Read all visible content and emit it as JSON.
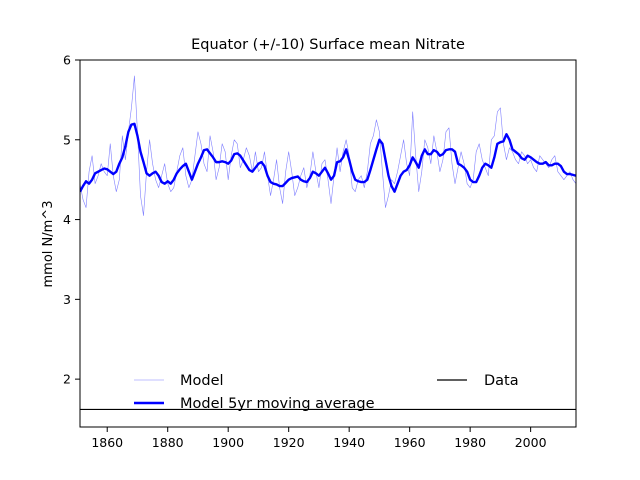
{
  "chart_data": {
    "type": "line",
    "title": "Equator (+/-10) Surface mean Nitrate",
    "xlabel": "",
    "ylabel": "mmol N/m^3",
    "xlim": [
      1851,
      2015
    ],
    "ylim": [
      1.4,
      6.0
    ],
    "xticks": [
      1860,
      1880,
      1900,
      1920,
      1940,
      1960,
      1980,
      2000
    ],
    "yticks": [
      2,
      3,
      4,
      5,
      6
    ],
    "grid": false,
    "legend": {
      "placement": "bottom",
      "columns": 2
    },
    "series": [
      {
        "name": "Model",
        "color": "#0000ff",
        "style": "thin",
        "x": [
          1851,
          1852,
          1853,
          1854,
          1855,
          1856,
          1857,
          1858,
          1859,
          1860,
          1861,
          1862,
          1863,
          1864,
          1865,
          1866,
          1867,
          1868,
          1869,
          1870,
          1871,
          1872,
          1873,
          1874,
          1875,
          1876,
          1877,
          1878,
          1879,
          1880,
          1881,
          1882,
          1883,
          1884,
          1885,
          1886,
          1887,
          1888,
          1889,
          1890,
          1891,
          1892,
          1893,
          1894,
          1895,
          1896,
          1897,
          1898,
          1899,
          1900,
          1901,
          1902,
          1903,
          1904,
          1905,
          1906,
          1907,
          1908,
          1909,
          1910,
          1911,
          1912,
          1913,
          1914,
          1915,
          1916,
          1917,
          1918,
          1919,
          1920,
          1921,
          1922,
          1923,
          1924,
          1925,
          1926,
          1927,
          1928,
          1929,
          1930,
          1931,
          1932,
          1933,
          1934,
          1935,
          1936,
          1937,
          1938,
          1939,
          1940,
          1941,
          1942,
          1943,
          1944,
          1945,
          1946,
          1947,
          1948,
          1949,
          1950,
          1951,
          1952,
          1953,
          1954,
          1955,
          1956,
          1957,
          1958,
          1959,
          1960,
          1961,
          1962,
          1963,
          1964,
          1965,
          1966,
          1967,
          1968,
          1969,
          1970,
          1971,
          1972,
          1973,
          1974,
          1975,
          1976,
          1977,
          1978,
          1979,
          1980,
          1981,
          1982,
          1983,
          1984,
          1985,
          1986,
          1987,
          1988,
          1989,
          1990,
          1991,
          1992,
          1993,
          1994,
          1995,
          1996,
          1997,
          1998,
          1999,
          2000,
          2001,
          2002,
          2003,
          2004,
          2005,
          2006,
          2007,
          2008,
          2009,
          2010,
          2011,
          2012,
          2013,
          2014,
          2015
        ],
        "values": [
          4.45,
          4.25,
          4.15,
          4.6,
          4.8,
          4.45,
          4.55,
          4.7,
          4.6,
          4.55,
          4.95,
          4.55,
          4.35,
          4.5,
          5.05,
          4.75,
          5.1,
          5.4,
          5.8,
          5.1,
          4.3,
          4.05,
          4.6,
          5.0,
          4.7,
          4.5,
          4.4,
          4.55,
          4.7,
          4.45,
          4.35,
          4.4,
          4.6,
          4.8,
          4.9,
          4.55,
          4.4,
          4.5,
          4.8,
          5.1,
          4.95,
          4.7,
          4.6,
          5.05,
          4.85,
          4.5,
          4.65,
          4.95,
          4.85,
          4.5,
          4.8,
          5.0,
          4.95,
          4.65,
          4.75,
          4.9,
          4.8,
          4.6,
          4.85,
          4.6,
          4.65,
          4.85,
          4.55,
          4.3,
          4.5,
          4.75,
          4.4,
          4.2,
          4.6,
          4.85,
          4.6,
          4.3,
          4.4,
          4.55,
          4.65,
          4.4,
          4.55,
          4.85,
          4.6,
          4.4,
          4.7,
          4.75,
          4.5,
          4.2,
          4.55,
          4.9,
          4.6,
          4.85,
          5.0,
          4.8,
          4.4,
          4.35,
          4.5,
          4.55,
          4.4,
          4.6,
          4.95,
          5.05,
          5.25,
          5.1,
          4.6,
          4.15,
          4.3,
          4.5,
          4.45,
          4.6,
          4.8,
          5.0,
          4.7,
          4.55,
          5.35,
          4.8,
          4.35,
          4.6,
          5.0,
          4.9,
          4.7,
          5.05,
          4.85,
          4.6,
          4.75,
          5.1,
          5.15,
          4.7,
          4.45,
          4.65,
          4.85,
          4.7,
          4.45,
          4.4,
          4.5,
          4.85,
          4.95,
          4.75,
          4.65,
          4.55,
          5.0,
          5.05,
          5.35,
          5.4,
          4.95,
          4.75,
          4.9,
          4.85,
          4.75,
          4.7,
          4.85,
          4.8,
          4.7,
          4.75,
          4.65,
          4.6,
          4.8,
          4.75,
          4.7,
          4.65,
          4.75,
          4.8,
          4.6,
          4.55,
          4.5,
          4.55,
          4.6,
          4.5,
          4.45
        ]
      },
      {
        "name": "Model 5yr moving average",
        "color": "#0000ff",
        "style": "thick",
        "x": [
          1851,
          1852,
          1853,
          1854,
          1855,
          1856,
          1857,
          1858,
          1859,
          1860,
          1861,
          1862,
          1863,
          1864,
          1865,
          1866,
          1867,
          1868,
          1869,
          1870,
          1871,
          1872,
          1873,
          1874,
          1875,
          1876,
          1877,
          1878,
          1879,
          1880,
          1881,
          1882,
          1883,
          1884,
          1885,
          1886,
          1887,
          1888,
          1889,
          1890,
          1891,
          1892,
          1893,
          1894,
          1895,
          1896,
          1897,
          1898,
          1899,
          1900,
          1901,
          1902,
          1903,
          1904,
          1905,
          1906,
          1907,
          1908,
          1909,
          1910,
          1911,
          1912,
          1913,
          1914,
          1915,
          1916,
          1917,
          1918,
          1919,
          1920,
          1921,
          1922,
          1923,
          1924,
          1925,
          1926,
          1927,
          1928,
          1929,
          1930,
          1931,
          1932,
          1933,
          1934,
          1935,
          1936,
          1937,
          1938,
          1939,
          1940,
          1941,
          1942,
          1943,
          1944,
          1945,
          1946,
          1947,
          1948,
          1949,
          1950,
          1951,
          1952,
          1953,
          1954,
          1955,
          1956,
          1957,
          1958,
          1959,
          1960,
          1961,
          1962,
          1963,
          1964,
          1965,
          1966,
          1967,
          1968,
          1969,
          1970,
          1971,
          1972,
          1973,
          1974,
          1975,
          1976,
          1977,
          1978,
          1979,
          1980,
          1981,
          1982,
          1983,
          1984,
          1985,
          1986,
          1987,
          1988,
          1989,
          1990,
          1991,
          1992,
          1993,
          1994,
          1995,
          1996,
          1997,
          1998,
          1999,
          2000,
          2001,
          2002,
          2003,
          2004,
          2005,
          2006,
          2007,
          2008,
          2009,
          2010,
          2011,
          2012,
          2013,
          2014,
          2015
        ],
        "values": [
          4.35,
          4.42,
          4.48,
          4.45,
          4.5,
          4.58,
          4.6,
          4.62,
          4.64,
          4.63,
          4.6,
          4.57,
          4.6,
          4.7,
          4.78,
          4.92,
          5.1,
          5.19,
          5.2,
          5.05,
          4.85,
          4.72,
          4.58,
          4.55,
          4.58,
          4.6,
          4.55,
          4.47,
          4.45,
          4.48,
          4.45,
          4.5,
          4.58,
          4.63,
          4.67,
          4.7,
          4.6,
          4.5,
          4.6,
          4.7,
          4.78,
          4.87,
          4.88,
          4.83,
          4.78,
          4.72,
          4.72,
          4.73,
          4.72,
          4.7,
          4.74,
          4.82,
          4.83,
          4.8,
          4.74,
          4.68,
          4.62,
          4.6,
          4.65,
          4.7,
          4.72,
          4.67,
          4.55,
          4.47,
          4.45,
          4.44,
          4.42,
          4.42,
          4.46,
          4.5,
          4.52,
          4.53,
          4.54,
          4.5,
          4.48,
          4.47,
          4.52,
          4.6,
          4.58,
          4.55,
          4.6,
          4.65,
          4.58,
          4.5,
          4.55,
          4.72,
          4.73,
          4.78,
          4.88,
          4.75,
          4.6,
          4.5,
          4.48,
          4.47,
          4.47,
          4.5,
          4.62,
          4.75,
          4.88,
          5.0,
          4.95,
          4.75,
          4.55,
          4.42,
          4.35,
          4.45,
          4.55,
          4.6,
          4.62,
          4.68,
          4.78,
          4.72,
          4.65,
          4.8,
          4.88,
          4.82,
          4.82,
          4.87,
          4.85,
          4.8,
          4.82,
          4.87,
          4.88,
          4.88,
          4.85,
          4.7,
          4.68,
          4.65,
          4.6,
          4.5,
          4.47,
          4.47,
          4.55,
          4.65,
          4.7,
          4.68,
          4.65,
          4.78,
          4.95,
          4.97,
          4.98,
          5.07,
          5.0,
          4.88,
          4.85,
          4.82,
          4.77,
          4.75,
          4.8,
          4.78,
          4.75,
          4.72,
          4.7,
          4.7,
          4.72,
          4.68,
          4.68,
          4.7,
          4.7,
          4.67,
          4.6,
          4.57,
          4.57,
          4.56,
          4.55
        ]
      },
      {
        "name": "Data",
        "color": "#000000",
        "style": "constant",
        "x": [
          1851,
          2015
        ],
        "values": [
          1.62,
          1.62
        ]
      }
    ]
  }
}
